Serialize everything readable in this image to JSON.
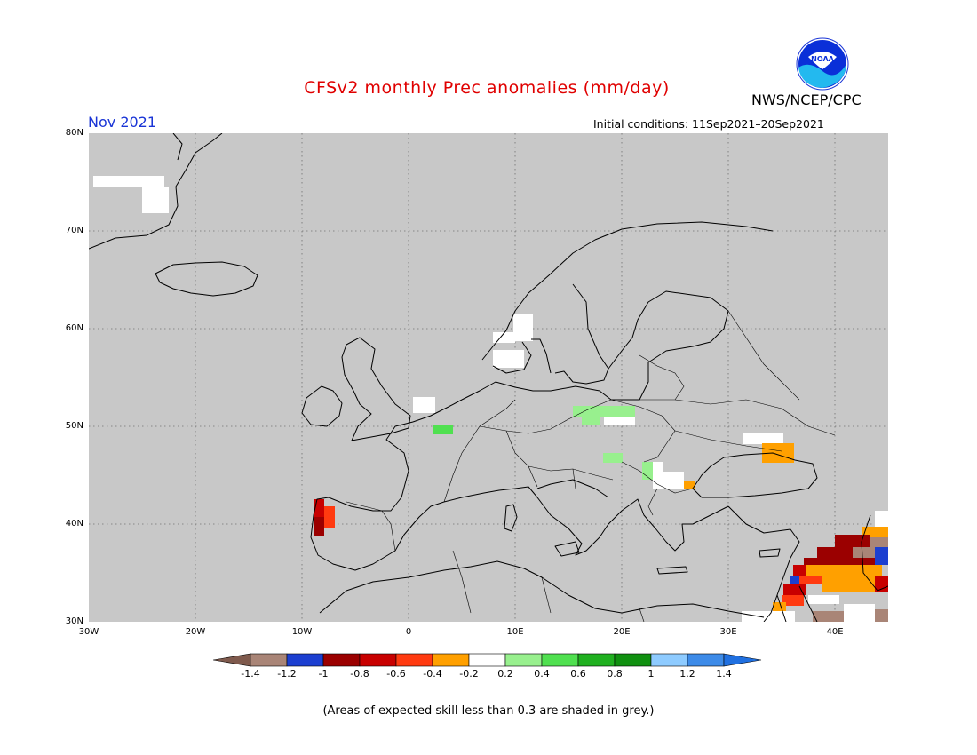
{
  "header": {
    "title": "CFSv2 monthly Prec anomalies (mm/day)",
    "agency": "NWS/NCEP/CPC",
    "month": "Nov 2021",
    "initial_conditions": "Initial conditions: 11Sep2021–20Sep2021",
    "logo_text": "NOAA"
  },
  "axes": {
    "lat_labels": [
      "80N",
      "70N",
      "60N",
      "50N",
      "40N",
      "30N"
    ],
    "lon_labels": [
      "30W",
      "20W",
      "10W",
      "0",
      "10E",
      "20E",
      "30E",
      "40E"
    ]
  },
  "colorbar": {
    "colors": [
      "#7f5a4d",
      "#a98577",
      "#1c3fd0",
      "#9b0000",
      "#c80000",
      "#ff3a10",
      "#ffa000",
      "#ffffff",
      "#98f08e",
      "#50e050",
      "#20b020",
      "#109010",
      "#8ecbff",
      "#3d8be8",
      "#2070e0"
    ],
    "labels": [
      "-1.4",
      "-1.2",
      "-1",
      "-0.8",
      "-0.6",
      "-0.4",
      "-0.2",
      "0.2",
      "0.4",
      "0.6",
      "0.8",
      "1",
      "1.2",
      "1.4"
    ]
  },
  "footnote": "(Areas of expected skill less than 0.3 are shaded in grey.)",
  "colors": {
    "grey_background": "#c8c8c8",
    "title_red": "#e00000",
    "month_blue": "#1a35d6"
  }
}
